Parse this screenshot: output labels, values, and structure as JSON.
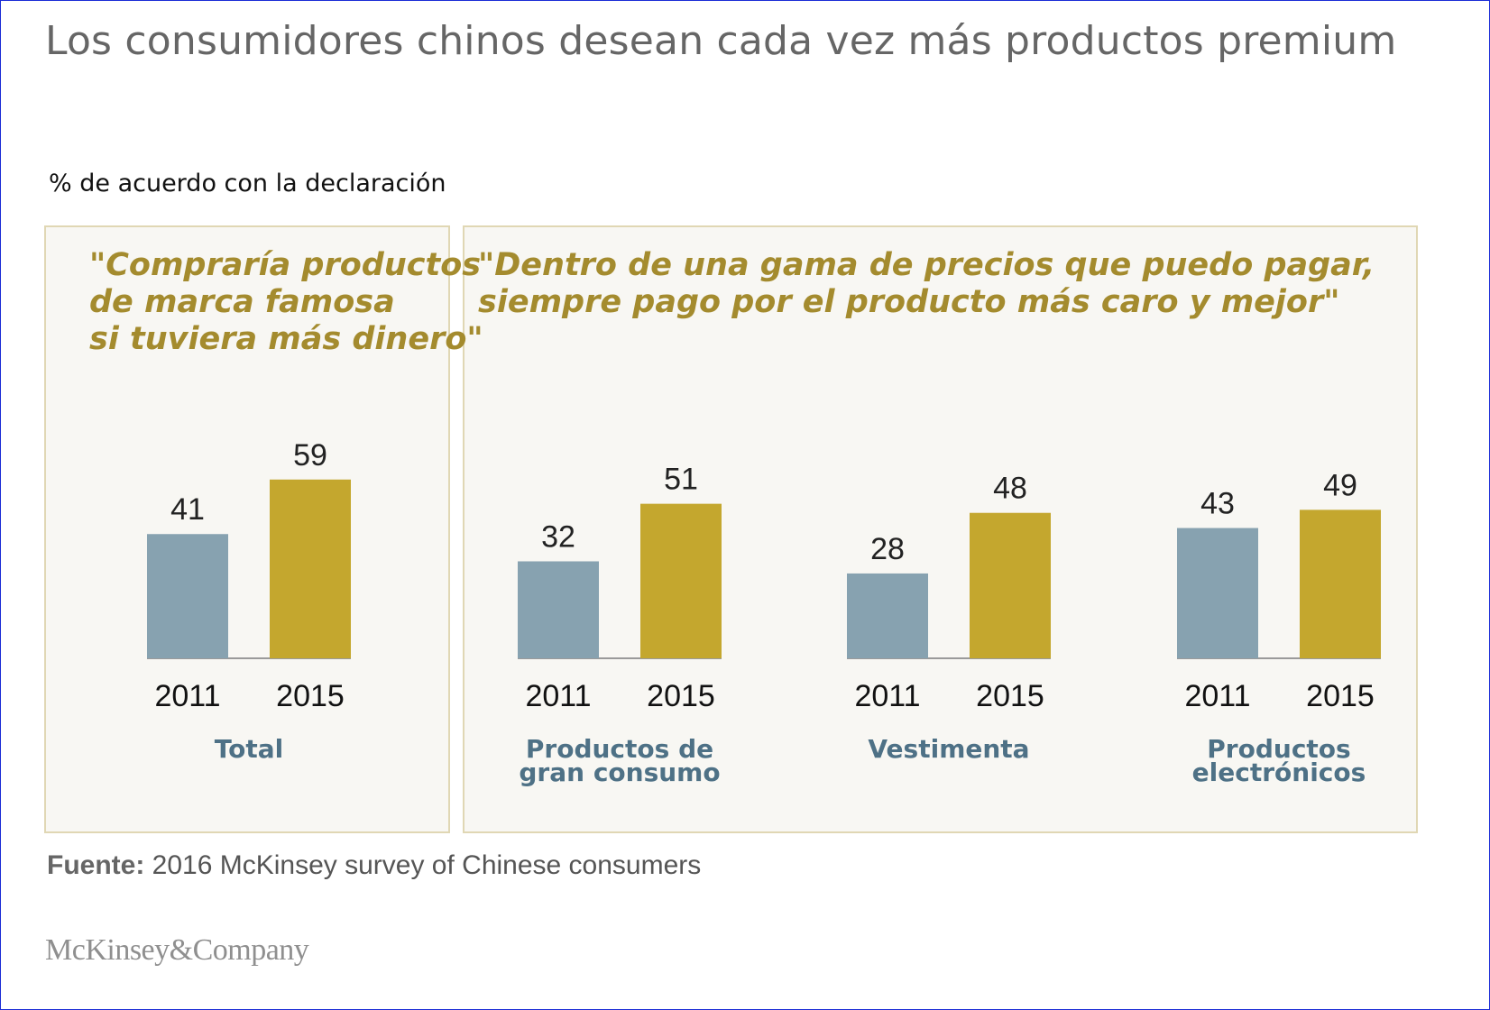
{
  "title": "Los consumidores chinos desean cada vez más productos premium",
  "subtitle": "% de acuerdo con la declaración",
  "panels": [
    {
      "quote": "\"Compraría productos\nde marca famosa\nsi tuviera más dinero\""
    },
    {
      "quote": "\"Dentro de una gama de precios que puedo pagar,\nsiempre pago por el producto más caro y mejor\""
    }
  ],
  "source": {
    "label": "Fuente:",
    "text": " 2016 McKinsey survey of Chinese consumers"
  },
  "logo": "McKinsey&Company",
  "colors": {
    "y2011": "#87a2b0",
    "y2015": "#c4a72e",
    "quote": "#a48b2e",
    "category": "#4e7186"
  },
  "chart_data": {
    "type": "bar",
    "series": [
      {
        "name": "2011",
        "values": [
          41,
          32,
          28,
          43
        ]
      },
      {
        "name": "2015",
        "values": [
          59,
          51,
          48,
          49
        ]
      }
    ],
    "categories": [
      "Total",
      "Productos de\ngran consumo",
      "Vestimenta",
      "Productos\nelectrónicos"
    ],
    "ylim": [
      0,
      70
    ],
    "grid": false
  }
}
